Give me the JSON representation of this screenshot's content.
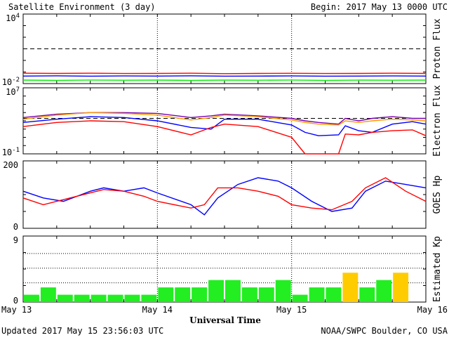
{
  "header": {
    "title": "Satellite Environment (3 day)",
    "begin": "Begin:  2017 May 13 0000 UTC"
  },
  "footer": {
    "updated": "Updated 2017 May 15 23:56:03 UTC",
    "credit": "NOAA/SWPC Boulder, CO USA",
    "xaxis_label": "Universal Time"
  },
  "chart_data": [
    {
      "type": "line",
      "ylabel": "Proton Flux",
      "yscale": "log",
      "ylim_exp": [
        -2,
        4
      ],
      "ytick_labels": [
        {
          "base": "10",
          "exp": "4"
        },
        {
          "base": "10",
          "exp": "-2"
        }
      ],
      "threshold_exp": 1,
      "colors": [
        "#ff0000",
        "#0000ff",
        "#00ee00"
      ],
      "x_days": [
        0,
        0.25,
        0.5,
        0.75,
        1.0,
        1.25,
        1.5,
        1.75,
        2.0,
        2.25,
        2.5,
        2.75,
        3.0
      ],
      "series_exp": [
        [
          -1.1,
          -1.12,
          -1.1,
          -1.13,
          -1.12,
          -1.1,
          -1.14,
          -1.12,
          -1.11,
          -1.13,
          -1.12,
          -1.1,
          -1.12
        ],
        [
          -1.35,
          -1.33,
          -1.36,
          -1.34,
          -1.35,
          -1.33,
          -1.36,
          -1.35,
          -1.34,
          -1.36,
          -1.35,
          -1.34,
          -1.35
        ],
        [
          -1.7,
          -1.72,
          -1.69,
          -1.71,
          -1.7,
          -1.72,
          -1.7,
          -1.71,
          -1.69,
          -1.72,
          -1.7,
          -1.71,
          -1.7
        ]
      ]
    },
    {
      "type": "line",
      "ylabel": "Electron Flux",
      "yscale": "log",
      "ylim_exp": [
        -1,
        7
      ],
      "ytick_labels": [
        {
          "base": "10",
          "exp": "7"
        },
        {
          "base": "10",
          "exp": "-1"
        }
      ],
      "threshold_exp": 3.3,
      "colors": [
        "#7700aa",
        "#ff9900",
        "#0000ff",
        "#ff0000"
      ],
      "x_days": [
        0,
        0.25,
        0.5,
        0.75,
        1.0,
        1.25,
        1.4,
        1.5,
        1.75,
        2.0,
        2.1,
        2.2,
        2.35,
        2.4,
        2.5,
        2.6,
        2.75,
        2.9,
        3.0
      ],
      "series_exp": [
        [
          3.4,
          3.8,
          4.0,
          4.0,
          3.9,
          3.4,
          3.6,
          3.8,
          3.6,
          3.3,
          3.0,
          2.8,
          2.6,
          3.3,
          3.0,
          3.3,
          3.5,
          3.3,
          3.3
        ],
        [
          3.2,
          3.7,
          4.0,
          3.9,
          3.7,
          3.1,
          3.4,
          3.7,
          3.5,
          3.1,
          2.8,
          2.6,
          2.5,
          3.0,
          2.8,
          3.0,
          3.2,
          3.1,
          3.0
        ],
        [
          2.8,
          3.2,
          3.5,
          3.4,
          3.0,
          2.2,
          2.0,
          3.2,
          3.2,
          2.5,
          1.6,
          1.2,
          1.3,
          2.4,
          1.8,
          1.6,
          2.6,
          2.9,
          2.6
        ],
        [
          2.3,
          2.8,
          3.0,
          2.9,
          2.3,
          1.3,
          2.2,
          2.6,
          2.3,
          1.0,
          -1.0,
          -1.0,
          -1.0,
          1.4,
          1.3,
          1.6,
          1.8,
          1.9,
          1.2
        ]
      ]
    },
    {
      "type": "line",
      "ylabel": "GOES Hp",
      "ylim": [
        0,
        200
      ],
      "ytick_labels": [
        "200",
        "0"
      ],
      "colors": [
        "#0000ff",
        "#ff0000"
      ],
      "x_days": [
        0,
        0.15,
        0.3,
        0.5,
        0.6,
        0.75,
        0.9,
        1.0,
        1.25,
        1.35,
        1.45,
        1.6,
        1.75,
        1.9,
        2.0,
        2.15,
        2.3,
        2.45,
        2.55,
        2.7,
        2.85,
        3.0
      ],
      "series": [
        [
          110,
          90,
          80,
          110,
          120,
          110,
          120,
          105,
          70,
          40,
          90,
          130,
          150,
          140,
          120,
          80,
          50,
          60,
          110,
          140,
          130,
          120
        ],
        [
          90,
          70,
          85,
          105,
          115,
          110,
          95,
          80,
          60,
          70,
          120,
          120,
          110,
          95,
          70,
          60,
          55,
          80,
          120,
          150,
          110,
          80
        ]
      ]
    },
    {
      "type": "bar",
      "ylabel": "Estimated Kp",
      "ylim": [
        0,
        9
      ],
      "ytick_labels": [
        "9",
        "0"
      ],
      "bar_hours": 3,
      "values": [
        1,
        2,
        1,
        1,
        1,
        1,
        1,
        1,
        2,
        2,
        2,
        3,
        3,
        2,
        2,
        3,
        1,
        2,
        2,
        4,
        2,
        3,
        4
      ],
      "storm_threshold": 4,
      "colors": {
        "quiet": "#22ee22",
        "storm": "#ffcc00"
      },
      "xtick_labels": [
        "May 13",
        "May 14",
        "May 15",
        "May 16"
      ]
    }
  ]
}
